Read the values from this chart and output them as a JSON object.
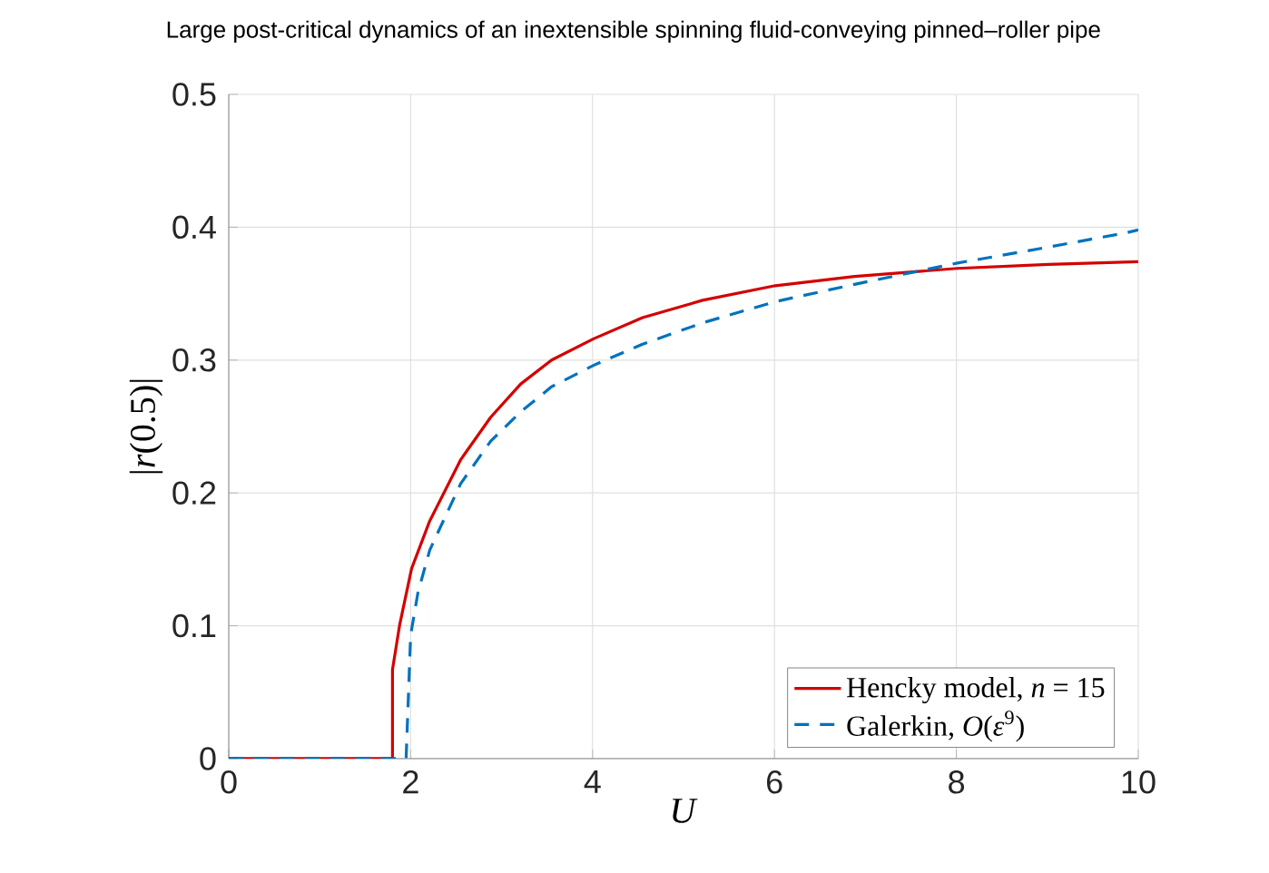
{
  "chart_data": {
    "type": "line",
    "title": "Large post-critical dynamics of an inextensible spinning fluid-conveying pinned–roller pipe",
    "xlabel": "*U*",
    "ylabel": "|*r*(0.5)|",
    "xlim": [
      0,
      10
    ],
    "ylim": [
      0,
      0.5
    ],
    "xticks": [
      0,
      2,
      4,
      6,
      8,
      10
    ],
    "yticks": [
      0,
      0.1,
      0.2,
      0.3,
      0.4,
      0.5
    ],
    "grid": true,
    "legend": "bottom right",
    "series": [
      {
        "name": "Hencky model, *n* = 15",
        "color": "#d40000",
        "line_style": "solid",
        "x": [
          0,
          1.8,
          1.8,
          1.88,
          2.01,
          2.21,
          2.55,
          2.88,
          3.21,
          3.55,
          4.01,
          4.55,
          5.21,
          6.01,
          6.88,
          8.01,
          9.01,
          10
        ],
        "values": [
          0,
          0,
          0.067,
          0.101,
          0.143,
          0.179,
          0.225,
          0.257,
          0.282,
          0.3,
          0.316,
          0.332,
          0.345,
          0.356,
          0.363,
          0.369,
          0.372,
          0.374
        ]
      },
      {
        "name": "Galerkin, *O*(*ε*$^{9}$)",
        "color": "#0072bd",
        "line_style": "dashed",
        "x": [
          0,
          1.95,
          2.0,
          2.08,
          2.21,
          2.55,
          2.88,
          3.21,
          3.55,
          4.01,
          4.55,
          5.21,
          6.01,
          6.88,
          8.01,
          9.01,
          9.88,
          10
        ],
        "values": [
          0,
          0,
          0.093,
          0.125,
          0.157,
          0.207,
          0.239,
          0.261,
          0.28,
          0.296,
          0.312,
          0.328,
          0.344,
          0.357,
          0.373,
          0.385,
          0.396,
          0.398
        ]
      }
    ]
  }
}
